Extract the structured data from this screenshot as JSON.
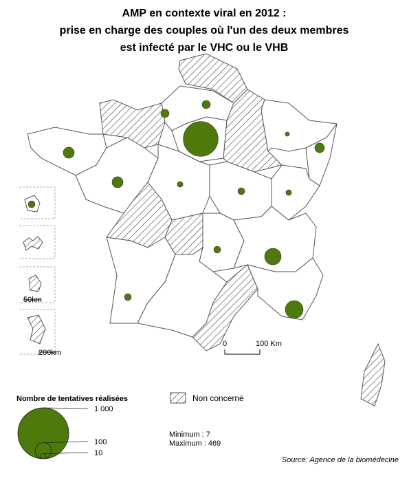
{
  "title": [
    "AMP en contexte viral en 2012 :",
    "prise en charge des couples où l'un des deux membres",
    "est infecté par le VHC ou le VHB"
  ],
  "bubbles": [
    26,
    26,
    469,
    7,
    36,
    47,
    47,
    12,
    18,
    12,
    18,
    105,
    18,
    123,
    18
  ],
  "scale": {
    "zero": "0",
    "length": "100 Km",
    "inset_small": "50km",
    "inset_large": "200km"
  },
  "hatch_legend": "Non concerné",
  "size_legend": {
    "title": "Nombre de tentatives réalisées",
    "sizes": [
      {
        "value": 1000,
        "label": "1 000"
      },
      100,
      10
    ]
  },
  "minimum": "Minimum : 7",
  "maximum": "Maximum : 469",
  "source": "Source: Agence de la biomédecine"
}
